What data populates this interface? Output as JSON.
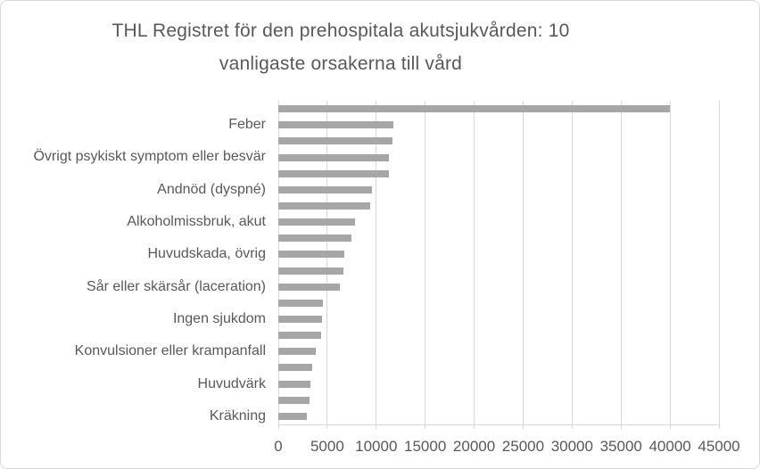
{
  "chart_data": {
    "type": "bar",
    "orientation": "horizontal",
    "title": "THL Registret för den prehospitala akutsjukvården: 10 vanligaste orsakerna till vård",
    "title_lines": [
      "THL Registret för den prehospitala akutsjukvården: 10",
      "vanligaste orsakerna till vård"
    ],
    "categories": [
      "",
      "Feber",
      "",
      "Övrigt psykiskt symptom eller besvär",
      "",
      "Andnöd (dyspné)",
      "",
      "Alkoholmissbruk, akut",
      "",
      "Huvudskada, övrig",
      "",
      "Sår eller skärsår (laceration)",
      "",
      "Ingen sjukdom",
      "",
      "Konvulsioner eller krampanfall",
      "",
      "Huvudvärk",
      "",
      "Kräkning"
    ],
    "values": [
      40000,
      11750,
      11700,
      11250,
      11250,
      9550,
      9400,
      7800,
      7500,
      6750,
      6650,
      6250,
      4550,
      4450,
      4400,
      3800,
      3500,
      3250,
      3150,
      2950
    ],
    "xlabel": "",
    "ylabel": "",
    "xlim": [
      0,
      45000
    ],
    "x_tick_values": [
      0,
      5000,
      10000,
      15000,
      20000,
      25000,
      30000,
      35000,
      40000,
      45000
    ],
    "x_tick_labels": [
      "0",
      "5000",
      "10000",
      "15000",
      "20000",
      "25000",
      "30000",
      "35000",
      "40000",
      "45000"
    ],
    "grid": true,
    "legend": false,
    "colors": {
      "bar": "#a6a6a6",
      "gridline": "#d9d9d9",
      "axis_line": "#d9d9d9",
      "text": "#595959",
      "border": "#d9d9d9",
      "background": "#ffffff"
    }
  }
}
